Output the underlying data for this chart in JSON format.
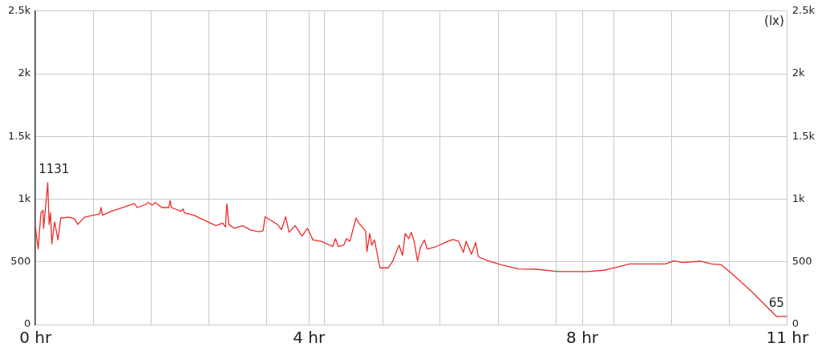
{
  "chart_data": {
    "type": "line",
    "y2label": "(lx)",
    "grid": true,
    "legend": false,
    "marker": "none",
    "line_style": "solid",
    "xlim": [
      0,
      11
    ],
    "xticks": [
      {
        "value": 0,
        "label": "0 hr"
      },
      {
        "value": 0.85,
        "label": null
      },
      {
        "value": 1.69,
        "label": null
      },
      {
        "value": 2.54,
        "label": null
      },
      {
        "value": 3.38,
        "label": null
      },
      {
        "value": 4,
        "label": "4 hr"
      },
      {
        "value": 4.23,
        "label": null
      },
      {
        "value": 5.08,
        "label": null
      },
      {
        "value": 5.92,
        "label": null
      },
      {
        "value": 6.77,
        "label": null
      },
      {
        "value": 7.62,
        "label": null
      },
      {
        "value": 8,
        "label": "8 hr"
      },
      {
        "value": 8.46,
        "label": null
      },
      {
        "value": 9.31,
        "label": null
      },
      {
        "value": 10.15,
        "label": null
      },
      {
        "value": 11,
        "label": "11 hr"
      }
    ],
    "ylim": [
      0,
      2500
    ],
    "yticks": [
      0,
      500,
      {
        "value": 1000,
        "label": "1k"
      },
      {
        "value": 1500,
        "label": "1.5k"
      },
      {
        "value": 2000,
        "label": "2k"
      },
      {
        "value": 2500,
        "label": "2.5k"
      }
    ],
    "y2lim": [
      0,
      2500
    ],
    "y2ticks": [
      0,
      500,
      {
        "value": 1000,
        "label": "1k"
      },
      {
        "value": 1500,
        "label": "1.5k"
      },
      {
        "value": 2000,
        "label": "2k"
      },
      {
        "value": 2500,
        "label": "2.5k"
      }
    ],
    "annotations": [
      {
        "text": "1131",
        "x": 0.18,
        "y": 1131
      },
      {
        "text": "65",
        "x": 11,
        "y": 65
      }
    ],
    "series": [
      {
        "color": "#ee2a2a",
        "x": [
          0,
          0.04,
          0.08,
          0.11,
          0.12,
          0.18,
          0.2,
          0.22,
          0.24,
          0.28,
          0.33,
          0.37,
          0.49,
          0.57,
          0.62,
          0.71,
          0.84,
          0.94,
          0.96,
          0.98,
          1.1,
          1.22,
          1.38,
          1.45,
          1.49,
          1.61,
          1.65,
          1.71,
          1.75,
          1.85,
          1.95,
          1.97,
          1.99,
          2.13,
          2.16,
          2.18,
          2.32,
          2.44,
          2.56,
          2.64,
          2.74,
          2.78,
          2.8,
          2.83,
          2.91,
          3.03,
          3.15,
          3.27,
          3.33,
          3.36,
          3.45,
          3.54,
          3.6,
          3.66,
          3.71,
          3.8,
          3.9,
          3.98,
          4.06,
          4.18,
          4.35,
          4.39,
          4.43,
          4.51,
          4.55,
          4.6,
          4.69,
          4.73,
          4.83,
          4.85,
          4.89,
          4.92,
          4.96,
          5.04,
          5.16,
          5.22,
          5.32,
          5.37,
          5.41,
          5.46,
          5.5,
          5.54,
          5.59,
          5.63,
          5.69,
          5.73,
          5.87,
          6.03,
          6.11,
          6.19,
          6.26,
          6.3,
          6.38,
          6.44,
          6.48,
          6.62,
          6.82,
          7.07,
          7.33,
          7.64,
          8.08,
          8.32,
          8.51,
          8.69,
          9.22,
          9.34,
          9.46,
          9.73,
          9.89,
          10.03,
          10.17,
          10.48,
          10.84,
          11
        ],
        "values": [
          778,
          602,
          891,
          911,
          767,
          1131,
          798,
          891,
          644,
          819,
          675,
          850,
          856,
          844,
          798,
          854,
          871,
          881,
          933,
          872,
          902,
          922,
          953,
          964,
          933,
          957,
          973,
          953,
          973,
          933,
          933,
          988,
          933,
          902,
          922,
          891,
          871,
          840,
          809,
          788,
          809,
          778,
          964,
          798,
          767,
          788,
          753,
          741,
          747,
          860,
          829,
          798,
          757,
          860,
          736,
          788,
          705,
          767,
          675,
          664,
          623,
          685,
          623,
          633,
          685,
          664,
          850,
          809,
          747,
          582,
          726,
          633,
          675,
          452,
          452,
          499,
          633,
          551,
          726,
          685,
          736,
          664,
          506,
          613,
          675,
          602,
          623,
          664,
          678,
          664,
          575,
          664,
          561,
          654,
          540,
          509,
          475,
          443,
          441,
          423,
          423,
          433,
          458,
          483,
          483,
          509,
          495,
          505,
          483,
          478,
          416,
          262,
          65,
          65
        ]
      }
    ]
  }
}
